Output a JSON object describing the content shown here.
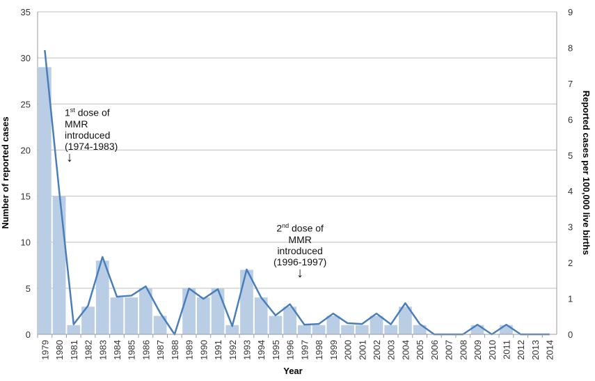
{
  "chart_data": {
    "type": "bar+line",
    "xlabel": "Year",
    "ylabel": "Number of reported cases",
    "y2label": "Reported cases per 100,000 live births",
    "ylim": [
      0,
      35
    ],
    "y2lim": [
      0,
      9
    ],
    "yticks": [
      0,
      5,
      10,
      15,
      20,
      25,
      30,
      35
    ],
    "y2ticks": [
      0,
      1,
      2,
      3,
      4,
      5,
      6,
      7,
      8,
      9
    ],
    "grid": true,
    "categories": [
      "1979",
      "1980",
      "1981",
      "1982",
      "1983",
      "1984",
      "1985",
      "1986",
      "1987",
      "1988",
      "1989",
      "1990",
      "1991",
      "1992",
      "1993",
      "1994",
      "1995",
      "1996",
      "1997",
      "1998",
      "1999",
      "2000",
      "2001",
      "2002",
      "2003",
      "2004",
      "2005",
      "2006",
      "2007",
      "2008",
      "2009",
      "2010",
      "2011",
      "2012",
      "2013",
      "2014"
    ],
    "series": [
      {
        "type": "bar",
        "axis": "left",
        "values": [
          29,
          15,
          1,
          3,
          8,
          4,
          4,
          5,
          2,
          0,
          5,
          4,
          5,
          1,
          7,
          4,
          2,
          3,
          1,
          1,
          2,
          1,
          1,
          2,
          1,
          3,
          1,
          0,
          0,
          0,
          1,
          0,
          1,
          0,
          0,
          0
        ]
      },
      {
        "type": "line",
        "axis": "right",
        "values": [
          7.93,
          4.0,
          0.28,
          0.8,
          2.16,
          1.05,
          1.08,
          1.34,
          0.6,
          0,
          1.28,
          0.99,
          1.26,
          0.23,
          1.81,
          1.03,
          0.53,
          0.84,
          0.27,
          0.29,
          0.58,
          0.31,
          0.29,
          0.58,
          0.28,
          0.87,
          0.29,
          0,
          0,
          0,
          0.27,
          0,
          0.27,
          0,
          0,
          0
        ]
      }
    ],
    "colors": {
      "bar": "#b9cde5",
      "line": "#4a7ebb",
      "grid": "#bfbfbf"
    },
    "annotations": [
      {
        "base": "1",
        "sup": "st",
        "rest": " dose of",
        "line2": "MMR",
        "line3": "introduced",
        "line4": "(1974-1983)",
        "arrow": "↓"
      },
      {
        "base": "2",
        "sup": "nd",
        "rest": " dose of",
        "line2": "MMR",
        "line3": "introduced",
        "line4": "(1996-1997)",
        "arrow": "↓"
      }
    ]
  }
}
